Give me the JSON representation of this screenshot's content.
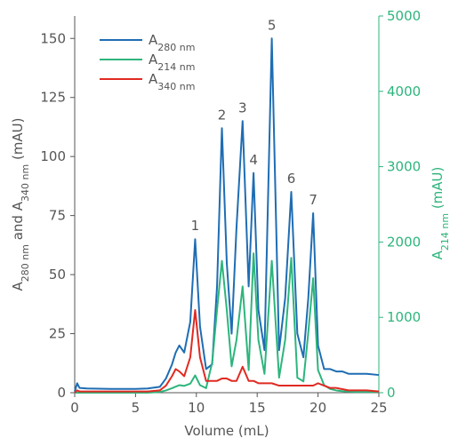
{
  "chart_data": {
    "type": "line",
    "x": [
      0,
      0.2,
      0.4,
      1,
      3,
      5,
      6,
      7,
      7.5,
      8,
      8.3,
      8.6,
      9,
      9.5,
      9.9,
      10.3,
      10.8,
      11.3,
      11.7,
      12.1,
      12.5,
      12.9,
      13.3,
      13.8,
      14.3,
      14.7,
      15.1,
      15.6,
      16.2,
      16.8,
      17.3,
      17.8,
      18.3,
      18.8,
      19.2,
      19.6,
      20,
      20.5,
      21,
      21.5,
      22,
      22.5,
      23,
      24,
      25
    ],
    "series": [
      {
        "name": [
          {
            "text": "A"
          },
          {
            "text": "280 nm",
            "sub": true
          }
        ],
        "color": "#1f6db3",
        "values": [
          0.5,
          4,
          2,
          1.8,
          1.6,
          1.6,
          1.8,
          2.5,
          6,
          12,
          17,
          20,
          17,
          30,
          65,
          28,
          10,
          12,
          45,
          112,
          55,
          25,
          70,
          115,
          45,
          93,
          35,
          18,
          150,
          18,
          40,
          85,
          25,
          15,
          40,
          76,
          20,
          10,
          10,
          9,
          9,
          8,
          8,
          8,
          7.5
        ]
      },
      {
        "name": [
          {
            "text": "A"
          },
          {
            "text": "214 nm",
            "sub": true
          }
        ],
        "color": "#2db57c",
        "axis": "y2",
        "values": [
          0,
          0,
          0,
          0,
          0,
          0,
          0,
          10,
          30,
          60,
          80,
          100,
          90,
          120,
          230,
          100,
          60,
          400,
          1100,
          1750,
          1100,
          350,
          700,
          1410,
          300,
          1850,
          700,
          250,
          1750,
          200,
          700,
          1790,
          200,
          150,
          800,
          1520,
          300,
          100,
          50,
          30,
          20,
          15,
          10,
          10,
          10
        ]
      },
      {
        "name": [
          {
            "text": "A"
          },
          {
            "text": "340 nm",
            "sub": true
          }
        ],
        "color": "#e02a22",
        "values": [
          0,
          1,
          0.5,
          0.5,
          0.5,
          0.5,
          0.5,
          1,
          3,
          7,
          10,
          9,
          7,
          15,
          35,
          15,
          5,
          5,
          5,
          6,
          6,
          5,
          5,
          11,
          5,
          5,
          4,
          4,
          4,
          3,
          3,
          3,
          3,
          3,
          3,
          3,
          4,
          3,
          2,
          2,
          1.5,
          1,
          1,
          1,
          0.5
        ]
      }
    ],
    "xlabel": "Volume (mL)",
    "ylabel": [
      {
        "text": "A"
      },
      {
        "text": "280 nm",
        "sub": true
      },
      {
        "text": " and A"
      },
      {
        "text": "340 nm",
        "sub": true
      },
      {
        "text": " (mAU)"
      }
    ],
    "y2label": [
      {
        "text": "A"
      },
      {
        "text": "214 nm",
        "sub": true
      },
      {
        "text": " (mAU)"
      }
    ],
    "xlim": [
      0,
      25
    ],
    "xticks": [
      0,
      5,
      10,
      15,
      20,
      25
    ],
    "ylim": [
      0,
      159.5
    ],
    "yticks": [
      0,
      25,
      50,
      75,
      100,
      125,
      150
    ],
    "y2lim": [
      0,
      5000
    ],
    "y2ticks": [
      0,
      1000,
      2000,
      3000,
      4000,
      5000
    ],
    "y2color": "#2db57c",
    "annotations": [
      {
        "text": "1",
        "x": 9.9,
        "y": 65
      },
      {
        "text": "2",
        "x": 12.1,
        "y": 112
      },
      {
        "text": "3",
        "x": 13.8,
        "y": 115
      },
      {
        "text": "4",
        "x": 14.7,
        "y": 93
      },
      {
        "text": "5",
        "x": 16.2,
        "y": 150
      },
      {
        "text": "6",
        "x": 17.8,
        "y": 85
      },
      {
        "text": "7",
        "x": 19.6,
        "y": 76
      }
    ],
    "legend": "upper-left"
  }
}
